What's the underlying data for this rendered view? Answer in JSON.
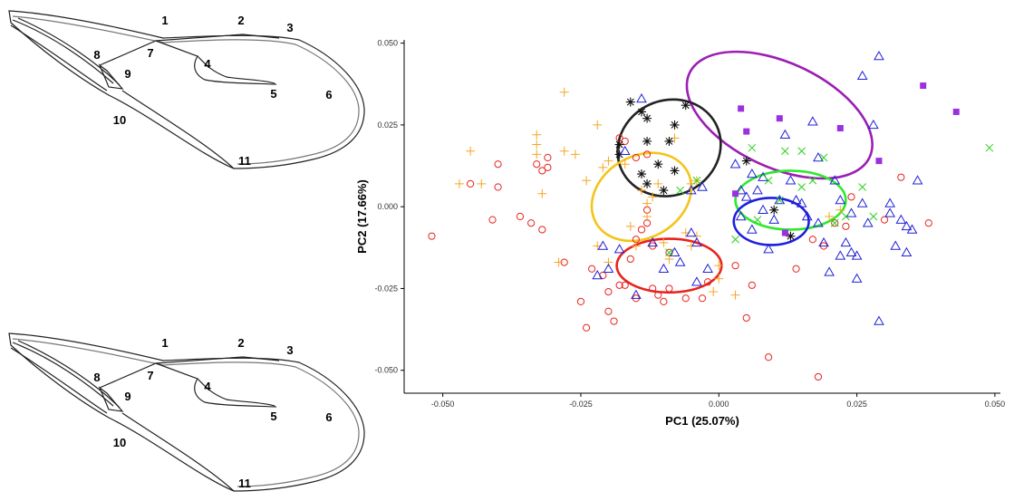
{
  "wings": [
    {
      "labels": [
        "1",
        "2",
        "3",
        "4",
        "5",
        "6",
        "7",
        "8",
        "9",
        "10",
        "11"
      ]
    },
    {
      "labels": [
        "1",
        "2",
        "3",
        "4",
        "5",
        "6",
        "7",
        "8",
        "9",
        "10",
        "11"
      ]
    }
  ],
  "chart_data": {
    "type": "scatter",
    "xlabel": "PC1 (25.07%)",
    "ylabel": "PC2 (17.66%)",
    "xlim": [
      -0.057,
      0.051
    ],
    "ylim": [
      -0.057,
      0.051
    ],
    "xticks": [
      -0.05,
      -0.025,
      0,
      0.025,
      0.05
    ],
    "xtick_labels": [
      "-0.050",
      "-0.025",
      "0.000",
      "0.025",
      "0.050"
    ],
    "yticks": [
      -0.05,
      -0.025,
      0,
      0.025,
      0.05
    ],
    "ytick_labels": [
      "-0.050",
      "-0.025",
      "0.000",
      "0.025",
      "0.050"
    ],
    "grid": false,
    "legend": "none",
    "series": [
      {
        "marker": "circle",
        "color": "#e8231d",
        "points": [
          [
            -0.052,
            -0.009
          ],
          [
            -0.045,
            0.007
          ],
          [
            -0.04,
            0.013
          ],
          [
            -0.04,
            0.006
          ],
          [
            -0.041,
            -0.004
          ],
          [
            -0.036,
            -0.003
          ],
          [
            -0.034,
            -0.005
          ],
          [
            -0.033,
            0.013
          ],
          [
            -0.032,
            0.011
          ],
          [
            -0.032,
            -0.007
          ],
          [
            -0.031,
            0.015
          ],
          [
            -0.031,
            0.012
          ],
          [
            -0.028,
            -0.017
          ],
          [
            -0.025,
            -0.029
          ],
          [
            -0.024,
            -0.037
          ],
          [
            -0.023,
            -0.019
          ],
          [
            -0.021,
            -0.021
          ],
          [
            -0.02,
            -0.026
          ],
          [
            -0.02,
            -0.032
          ],
          [
            -0.019,
            -0.035
          ],
          [
            -0.018,
            -0.024
          ],
          [
            -0.017,
            -0.024
          ],
          [
            -0.016,
            -0.016
          ],
          [
            -0.015,
            -0.028
          ],
          [
            -0.015,
            -0.01
          ],
          [
            -0.014,
            -0.007
          ],
          [
            -0.013,
            -0.005
          ],
          [
            -0.012,
            -0.012
          ],
          [
            -0.012,
            -0.025
          ],
          [
            -0.011,
            -0.027
          ],
          [
            -0.01,
            -0.029
          ],
          [
            -0.009,
            -0.025
          ],
          [
            -0.018,
            0.021
          ],
          [
            -0.017,
            0.02
          ],
          [
            -0.015,
            0.015
          ],
          [
            -0.013,
            0.016
          ],
          [
            -0.013,
            -0.001
          ],
          [
            -0.009,
            -0.014
          ],
          [
            -0.006,
            -0.028
          ],
          [
            -0.003,
            -0.028
          ],
          [
            -0.002,
            -0.023
          ],
          [
            0.003,
            -0.018
          ],
          [
            0.005,
            -0.034
          ],
          [
            0.006,
            -0.024
          ],
          [
            0.009,
            -0.046
          ],
          [
            0.014,
            -0.019
          ],
          [
            0.018,
            -0.052
          ],
          [
            0.017,
            -0.01
          ],
          [
            0.019,
            -0.012
          ],
          [
            0.021,
            -0.005
          ],
          [
            0.023,
            -0.006
          ],
          [
            0.024,
            0.003
          ],
          [
            0.033,
            0.009
          ],
          [
            0.038,
            -0.005
          ],
          [
            0.03,
            -0.004
          ]
        ]
      },
      {
        "marker": "plus",
        "color": "#f5a623",
        "points": [
          [
            -0.047,
            0.007
          ],
          [
            -0.045,
            0.017
          ],
          [
            -0.043,
            0.007
          ],
          [
            -0.033,
            0.019
          ],
          [
            -0.033,
            0.022
          ],
          [
            -0.033,
            0.016
          ],
          [
            -0.032,
            0.004
          ],
          [
            -0.029,
            -0.017
          ],
          [
            -0.028,
            0.035
          ],
          [
            -0.028,
            0.017
          ],
          [
            -0.026,
            0.016
          ],
          [
            -0.024,
            0.008
          ],
          [
            -0.022,
            0.025
          ],
          [
            -0.022,
            -0.012
          ],
          [
            -0.021,
            0.012
          ],
          [
            -0.02,
            0.014
          ],
          [
            -0.02,
            -0.017
          ],
          [
            -0.018,
            0.019
          ],
          [
            -0.017,
            0.013
          ],
          [
            -0.016,
            -0.006
          ],
          [
            -0.015,
            -0.012
          ],
          [
            -0.014,
            0.005
          ],
          [
            -0.013,
            0.001
          ],
          [
            -0.013,
            -0.003
          ],
          [
            -0.012,
            0.003
          ],
          [
            -0.011,
            0.007
          ],
          [
            -0.01,
            -0.011
          ],
          [
            -0.009,
            -0.016
          ],
          [
            -0.008,
            0.021
          ],
          [
            -0.006,
            -0.008
          ],
          [
            -0.005,
            -0.012
          ],
          [
            -0.004,
            -0.009
          ],
          [
            -0.005,
            0.007
          ],
          [
            0.0,
            -0.018
          ],
          [
            0.0,
            -0.022
          ],
          [
            -0.001,
            -0.026
          ],
          [
            0.003,
            -0.027
          ],
          [
            0.02,
            -0.003
          ],
          [
            0.022,
            -0.001
          ],
          [
            -0.004,
            0.008
          ]
        ]
      },
      {
        "marker": "asterisk",
        "color": "#111111",
        "points": [
          [
            -0.018,
            0.019
          ],
          [
            -0.018,
            0.016
          ],
          [
            -0.016,
            0.032
          ],
          [
            -0.014,
            0.029
          ],
          [
            -0.014,
            0.01
          ],
          [
            -0.013,
            0.027
          ],
          [
            -0.013,
            0.007
          ],
          [
            -0.013,
            0.02
          ],
          [
            -0.011,
            0.013
          ],
          [
            -0.01,
            0.005
          ],
          [
            -0.009,
            0.02
          ],
          [
            -0.008,
            0.025
          ],
          [
            -0.008,
            0.011
          ],
          [
            -0.006,
            0.031
          ],
          [
            0.005,
            0.014
          ],
          [
            0.01,
            -0.001
          ],
          [
            0.013,
            -0.009
          ]
        ]
      },
      {
        "marker": "triangle",
        "color": "#2020d8",
        "points": [
          [
            -0.022,
            -0.021
          ],
          [
            -0.021,
            -0.012
          ],
          [
            -0.02,
            -0.019
          ],
          [
            -0.018,
            -0.013
          ],
          [
            -0.017,
            0.017
          ],
          [
            -0.015,
            -0.027
          ],
          [
            -0.014,
            0.033
          ],
          [
            -0.012,
            -0.011
          ],
          [
            -0.01,
            -0.019
          ],
          [
            -0.008,
            -0.014
          ],
          [
            -0.007,
            -0.017
          ],
          [
            -0.005,
            0.005
          ],
          [
            -0.005,
            -0.008
          ],
          [
            -0.004,
            -0.011
          ],
          [
            -0.004,
            -0.023
          ],
          [
            -0.003,
            0.006
          ],
          [
            -0.002,
            -0.019
          ],
          [
            0.003,
            0.013
          ],
          [
            0.004,
            0.005
          ],
          [
            0.004,
            -0.003
          ],
          [
            0.005,
            0.003
          ],
          [
            0.006,
            0.01
          ],
          [
            0.006,
            -0.007
          ],
          [
            0.007,
            0.005
          ],
          [
            0.008,
            -0.001
          ],
          [
            0.008,
            0.009
          ],
          [
            0.009,
            -0.013
          ],
          [
            0.01,
            -0.004
          ],
          [
            0.011,
            0.002
          ],
          [
            0.012,
            0.022
          ],
          [
            0.013,
            0.008
          ],
          [
            0.014,
            0.002
          ],
          [
            0.015,
            0.001
          ],
          [
            0.016,
            -0.003
          ],
          [
            0.017,
            0.026
          ],
          [
            0.018,
            0.015
          ],
          [
            0.018,
            -0.005
          ],
          [
            0.019,
            -0.011
          ],
          [
            0.02,
            -0.02
          ],
          [
            0.021,
            0.008
          ],
          [
            0.022,
            0.002
          ],
          [
            0.023,
            -0.011
          ],
          [
            0.024,
            -0.014
          ],
          [
            0.024,
            -0.002
          ],
          [
            0.025,
            -0.015
          ],
          [
            0.025,
            -0.022
          ],
          [
            0.026,
            0.001
          ],
          [
            0.026,
            0.04
          ],
          [
            0.027,
            -0.005
          ],
          [
            0.028,
            0.025
          ],
          [
            0.029,
            0.046
          ],
          [
            0.029,
            -0.035
          ],
          [
            0.031,
            -0.002
          ],
          [
            0.032,
            -0.012
          ],
          [
            0.033,
            -0.004
          ],
          [
            0.034,
            -0.006
          ],
          [
            0.035,
            -0.007
          ],
          [
            0.036,
            0.008
          ],
          [
            0.031,
            0.001
          ],
          [
            0.034,
            -0.014
          ],
          [
            0.022,
            -0.015
          ]
        ]
      },
      {
        "marker": "x",
        "color": "#28d219",
        "points": [
          [
            -0.009,
            -0.014
          ],
          [
            -0.007,
            0.005
          ],
          [
            -0.004,
            0.008
          ],
          [
            0.003,
            -0.01
          ],
          [
            0.006,
            0.018
          ],
          [
            0.007,
            -0.004
          ],
          [
            0.009,
            0.008
          ],
          [
            0.011,
            0.002
          ],
          [
            0.012,
            0.017
          ],
          [
            0.015,
            0.006
          ],
          [
            0.015,
            0.017
          ],
          [
            0.017,
            0.008
          ],
          [
            0.019,
            0.015
          ],
          [
            0.021,
            -0.005
          ],
          [
            0.023,
            -0.003
          ],
          [
            0.026,
            0.006
          ],
          [
            0.028,
            -0.003
          ],
          [
            0.049,
            0.018
          ]
        ]
      },
      {
        "marker": "square",
        "color": "#9b30e0",
        "points": [
          [
            0.003,
            0.004
          ],
          [
            0.004,
            0.03
          ],
          [
            0.005,
            0.023
          ],
          [
            0.011,
            0.027
          ],
          [
            0.012,
            -0.008
          ],
          [
            0.022,
            0.024
          ],
          [
            0.029,
            0.014
          ],
          [
            0.037,
            0.037
          ],
          [
            0.043,
            0.029
          ]
        ]
      }
    ],
    "ellipses": [
      {
        "cx": 0.011,
        "cy": 0.028,
        "rx": 0.018,
        "ry": 0.016,
        "rot": 25,
        "color": "#9b1fb3"
      },
      {
        "cx": -0.009,
        "cy": 0.018,
        "rx": 0.0095,
        "ry": 0.0145,
        "rot": -25,
        "color": "#222222"
      },
      {
        "cx": -0.014,
        "cy": 0.003,
        "rx": 0.0095,
        "ry": 0.0125,
        "rot": -30,
        "color": "#f3c419"
      },
      {
        "cx": 0.013,
        "cy": 0.002,
        "rx": 0.01,
        "ry": 0.009,
        "rot": 0,
        "color": "#2ee82e"
      },
      {
        "cx": 0.0095,
        "cy": -0.0045,
        "rx": 0.0068,
        "ry": 0.0072,
        "rot": 0,
        "color": "#1d1de0"
      },
      {
        "cx": -0.009,
        "cy": -0.018,
        "rx": 0.0095,
        "ry": 0.0082,
        "rot": 0,
        "color": "#e8231d"
      }
    ]
  }
}
